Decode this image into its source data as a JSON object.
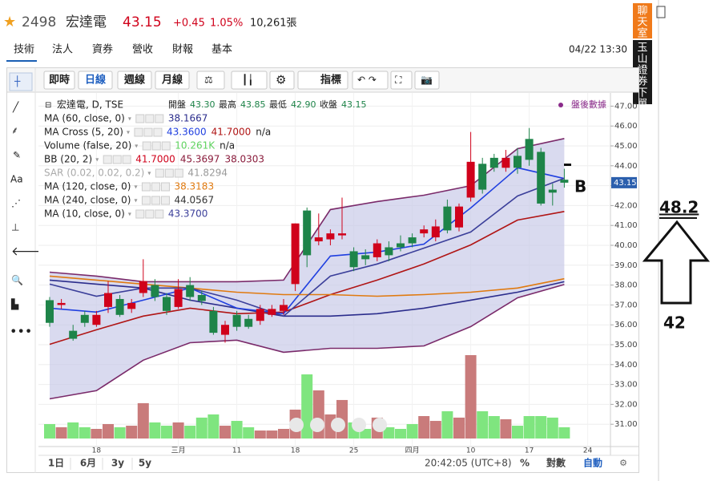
{
  "header": {
    "code": "2498",
    "name": "宏達電",
    "price": "43.15",
    "change": "+0.45",
    "change_pct": "1.05%",
    "volume": "10,261張"
  },
  "tabs": [
    "技術",
    "法人",
    "資券",
    "營收",
    "財報",
    "基本"
  ],
  "datetime": "04/22 13:30",
  "toolbar": [
    "即時",
    "日線",
    "週線",
    "月線",
    "指標"
  ],
  "sidebar": {
    "chat": "聊天室",
    "order": "玉山證券下單"
  },
  "bottom_bar": {
    "ranges": [
      "1日",
      "6月",
      "3y",
      "5y"
    ],
    "clock": "20:42:05 (UTC+8)",
    "percent": "%",
    "log": "對數",
    "auto": "自動"
  },
  "annotations": {
    "marker": "B",
    "target": "48.2",
    "base": "42"
  },
  "chart_data": {
    "type": "candlestick",
    "symbol_line": "宏達電, D, TSE",
    "ohlc_labels": [
      "開盤",
      "最高",
      "最低",
      "收盤"
    ],
    "ohlc_readout": [
      "43.30",
      "43.85",
      "42.90",
      "43.15"
    ],
    "after_hours": "盤後數據",
    "last_price": "43.15",
    "categories": [
      null,
      null,
      null,
      null,
      "18",
      null,
      null,
      null,
      null,
      null,
      null,
      "三月",
      null,
      null,
      null,
      null,
      "11",
      null,
      null,
      null,
      null,
      "18",
      null,
      null,
      null,
      null,
      "25",
      null,
      null,
      null,
      null,
      "四月",
      null,
      null,
      null,
      null,
      "10",
      null,
      null,
      null,
      null,
      "17",
      null,
      null,
      null,
      null,
      "24"
    ],
    "open": [
      37.24,
      37.0,
      35.7,
      36.5,
      36.0,
      36.9,
      37.3,
      36.8,
      37.6,
      38.0,
      37.4,
      36.9,
      38.0,
      37.5,
      36.7,
      35.5,
      36.5,
      36.3,
      36.2,
      36.5,
      36.7,
      38.05,
      41.75,
      40.2,
      40.3,
      40.5,
      39.7,
      39.5,
      39.4,
      39.9,
      40.1,
      40.4,
      40.6,
      40.4,
      41.95,
      40.9,
      42.4,
      44.1,
      44.4,
      43.9,
      44.5,
      45.35,
      44.7,
      42.8,
      43.3,
      null,
      null
    ],
    "high": [
      37.4,
      37.3,
      36.0,
      36.7,
      36.7,
      38.2,
      37.5,
      37.3,
      39.3,
      38.3,
      37.6,
      38.3,
      38.4,
      37.7,
      36.9,
      36.2,
      36.7,
      36.5,
      37.0,
      37.0,
      37.3,
      41.1,
      41.9,
      41.6,
      40.8,
      42.4,
      39.9,
      39.8,
      40.3,
      40.2,
      40.5,
      40.6,
      41.0,
      41.3,
      42.3,
      42.1,
      45.7,
      44.4,
      44.6,
      44.8,
      44.9,
      45.9,
      44.9,
      43.1,
      43.85,
      null,
      null
    ],
    "low": [
      35.9,
      36.8,
      35.2,
      35.9,
      35.9,
      36.6,
      36.4,
      36.6,
      37.4,
      37.2,
      36.5,
      36.8,
      37.2,
      37.0,
      35.5,
      35.1,
      35.7,
      35.8,
      36.0,
      36.4,
      36.5,
      37.7,
      38.9,
      40.0,
      40.0,
      40.3,
      38.7,
      39.0,
      39.2,
      39.2,
      39.7,
      39.9,
      40.4,
      40.2,
      40.6,
      40.7,
      42.2,
      42.6,
      43.7,
      43.7,
      43.6,
      44.0,
      42.0,
      42.0,
      42.9,
      null,
      null
    ],
    "close": [
      36.1,
      37.1,
      35.3,
      36.1,
      36.5,
      37.6,
      36.5,
      37.1,
      38.2,
      37.4,
      36.7,
      37.8,
      37.4,
      37.2,
      35.6,
      36.0,
      35.9,
      35.9,
      36.8,
      36.8,
      37.0,
      41.1,
      39.5,
      40.4,
      40.6,
      40.6,
      38.9,
      39.3,
      40.1,
      39.5,
      39.9,
      40.1,
      40.8,
      40.95,
      40.75,
      41.95,
      44.2,
      42.8,
      43.9,
      44.4,
      43.9,
      44.3,
      42.1,
      42.65,
      43.15,
      null,
      null
    ],
    "volume": [
      13200,
      10300,
      14700,
      10300,
      8800,
      13200,
      10300,
      11700,
      32300,
      14700,
      11700,
      14700,
      11700,
      19100,
      22000,
      11700,
      16100,
      10300,
      7300,
      7300,
      8800,
      26400,
      58600,
      44000,
      22000,
      35200,
      14700,
      8800,
      19100,
      10300,
      8800,
      13200,
      20500,
      16100,
      24900,
      19100,
      76200,
      24900,
      20500,
      17600,
      11700,
      20500,
      20500,
      19100,
      10261,
      null,
      null
    ],
    "up_color": "#d0021b",
    "down_color": "#1e8449",
    "volume_up_color": "#c97b7b",
    "volume_down_color": "#7fe57f",
    "ylim": [
      30,
      47.5
    ],
    "yticks": [
      {
        "value": 31,
        "label": "31.00"
      },
      {
        "value": 32,
        "label": "32.00"
      },
      {
        "value": 33,
        "label": "33.00"
      },
      {
        "value": 34,
        "label": "34.00"
      },
      {
        "value": 35,
        "label": "35.00"
      },
      {
        "value": 36,
        "label": "36.00"
      },
      {
        "value": 37,
        "label": "37.00"
      },
      {
        "value": 38,
        "label": "38.00"
      },
      {
        "value": 39,
        "label": "39.00"
      },
      {
        "value": 40,
        "label": "40.00"
      },
      {
        "value": 41,
        "label": "41.00"
      },
      {
        "value": 42,
        "label": "42.00"
      },
      {
        "value": 43,
        "label": "43.00"
      },
      {
        "value": 44,
        "label": "44.00"
      },
      {
        "value": 45,
        "label": "45.00"
      },
      {
        "value": 46,
        "label": "46.00"
      },
      {
        "value": 47,
        "label": "47.00"
      }
    ],
    "grid": true,
    "indicators": [
      {
        "name": "MA (60, close, 0)",
        "readout": [
          {
            "text": "38.1667",
            "color": "#2b2d8c"
          }
        ],
        "lines": [
          {
            "color": "#2b2d8c",
            "x": [
              0,
              4,
              8,
              12,
              16,
              20,
              24,
              28,
              32,
              36,
              40,
              44
            ],
            "values": [
              38.25,
              38.05,
              37.85,
              37.24,
              36.84,
              36.44,
              36.44,
              36.56,
              36.84,
              37.24,
              37.64,
              38.17
            ]
          }
        ]
      },
      {
        "name": "MA Cross (5, 20)",
        "readout": [
          {
            "text": "43.3600",
            "color": "#2040e0"
          },
          {
            "text": "41.7000",
            "color": "#b01515"
          },
          {
            "text": "n/a",
            "color": "#222222"
          }
        ],
        "lines": [
          {
            "color": "#b01515",
            "x": [
              0,
              4,
              8,
              12,
              16,
              20,
              24,
              28,
              32,
              36,
              40,
              44
            ],
            "values": [
              35.02,
              35.75,
              36.44,
              36.84,
              36.56,
              36.64,
              37.52,
              38.25,
              39.06,
              40.02,
              41.27,
              41.7
            ]
          },
          {
            "color": "#2040e0",
            "x": [
              0,
              4,
              8,
              12,
              16,
              20,
              24,
              28,
              32,
              36,
              40,
              44
            ],
            "values": [
              36.84,
              36.64,
              37.24,
              37.85,
              36.84,
              36.56,
              39.46,
              39.66,
              40.06,
              41.88,
              43.9,
              43.36
            ]
          }
        ]
      },
      {
        "name": "Volume (false, 20)",
        "readout": [
          {
            "text": "10.261K",
            "color": "#5fd35f"
          },
          {
            "text": "n/a",
            "color": "#222222"
          }
        ],
        "lines": []
      },
      {
        "name": "BB (20, 2)",
        "readout": [
          {
            "text": "41.7000",
            "color": "#d0021b"
          },
          {
            "text": "45.3697",
            "color": "#8a1c3c"
          },
          {
            "text": "38.0303",
            "color": "#8a1c3c"
          }
        ],
        "band_color": "#c4c6e6",
        "lines": [
          {
            "color": "#7a2a6a",
            "x": [
              0,
              4,
              8,
              12,
              16,
              20,
              24,
              28,
              32,
              36,
              40,
              44
            ],
            "values": [
              38.65,
              38.45,
              38.17,
              38.17,
              38.17,
              38.25,
              41.8,
              42.2,
              42.52,
              43.0,
              44.86,
              45.37
            ]
          },
          {
            "color": "#7a2a6a",
            "x": [
              0,
              4,
              8,
              12,
              16,
              20,
              24,
              28,
              32,
              36,
              40,
              44
            ],
            "values": [
              32.28,
              32.69,
              34.22,
              35.1,
              35.23,
              34.62,
              34.82,
              34.82,
              34.94,
              35.91,
              37.36,
              38.03
            ]
          }
        ]
      },
      {
        "name": "SAR (0.02, 0.02, 0.2)",
        "readout": [
          {
            "text": "41.8294",
            "color": "#9a9a9a"
          }
        ],
        "lines": []
      },
      {
        "name": "MA (120, close, 0)",
        "readout": [
          {
            "text": "38.3183",
            "color": "#e07a10"
          }
        ],
        "lines": [
          {
            "color": "#e07a10",
            "x": [
              0,
              4,
              8,
              12,
              16,
              20,
              24,
              28,
              32,
              36,
              40,
              44
            ],
            "values": [
              38.45,
              38.25,
              38.05,
              37.85,
              37.64,
              37.52,
              37.52,
              37.44,
              37.52,
              37.64,
              37.85,
              38.32
            ]
          }
        ]
      },
      {
        "name": "MA (240, close, 0)",
        "readout": [
          {
            "text": "44.0567",
            "color": "#333333"
          }
        ],
        "lines": []
      },
      {
        "name": "MA (10, close, 0)",
        "readout": [
          {
            "text": "43.3700",
            "color": "#3b3f9a"
          }
        ],
        "lines": [
          {
            "color": "#3b3f9a",
            "x": [
              0,
              4,
              8,
              12,
              16,
              20,
              24,
              28,
              32,
              36,
              40,
              44
            ],
            "values": [
              38.05,
              37.44,
              37.85,
              37.85,
              37.24,
              36.44,
              38.45,
              39.06,
              39.86,
              40.67,
              42.48,
              43.37
            ]
          }
        ]
      }
    ]
  }
}
